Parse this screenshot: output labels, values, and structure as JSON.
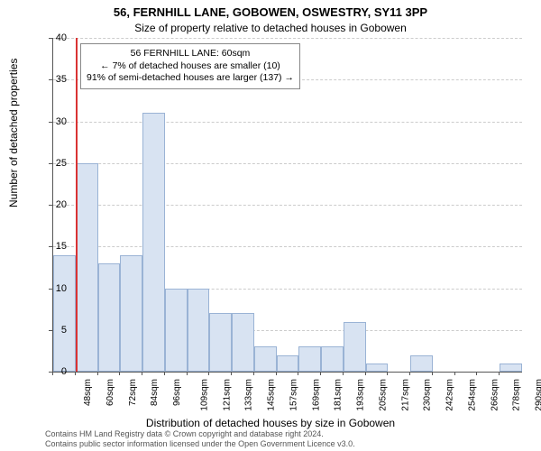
{
  "chart": {
    "type": "histogram",
    "title_main": "56, FERNHILL LANE, GOBOWEN, OSWESTRY, SY11 3PP",
    "title_sub": "Size of property relative to detached houses in Gobowen",
    "xlabel": "Distribution of detached houses by size in Gobowen",
    "ylabel": "Number of detached properties",
    "background_color": "#ffffff",
    "bar_fill": "#d8e3f2",
    "bar_border": "#9ab3d5",
    "grid_color": "#cccccc",
    "axis_color": "#555555",
    "refline_color": "#d93333",
    "refline_x": 60,
    "ylim": [
      0,
      40
    ],
    "ytick_step": 5,
    "xticks": [
      48,
      60,
      72,
      84,
      96,
      109,
      121,
      133,
      145,
      157,
      169,
      181,
      193,
      205,
      217,
      230,
      242,
      254,
      266,
      278,
      290
    ],
    "xtick_suffix": "sqm",
    "bars": [
      {
        "x": 48,
        "h": 14
      },
      {
        "x": 60,
        "h": 25
      },
      {
        "x": 72,
        "h": 13
      },
      {
        "x": 84,
        "h": 14
      },
      {
        "x": 96,
        "h": 31
      },
      {
        "x": 109,
        "h": 10
      },
      {
        "x": 121,
        "h": 10
      },
      {
        "x": 133,
        "h": 7
      },
      {
        "x": 145,
        "h": 7
      },
      {
        "x": 157,
        "h": 3
      },
      {
        "x": 169,
        "h": 2
      },
      {
        "x": 181,
        "h": 3
      },
      {
        "x": 193,
        "h": 3
      },
      {
        "x": 205,
        "h": 6
      },
      {
        "x": 217,
        "h": 1
      },
      {
        "x": 230,
        "h": 0
      },
      {
        "x": 242,
        "h": 2
      },
      {
        "x": 254,
        "h": 0
      },
      {
        "x": 266,
        "h": 0
      },
      {
        "x": 278,
        "h": 0
      },
      {
        "x": 290,
        "h": 1
      }
    ],
    "annotation": {
      "line1": "56 FERNHILL LANE: 60sqm",
      "line2": "← 7% of detached houses are smaller (10)",
      "line3": "91% of semi-detached houses are larger (137) →"
    },
    "footnote_line1": "Contains HM Land Registry data © Crown copyright and database right 2024.",
    "footnote_line2": "Contains public sector information licensed under the Open Government Licence v3.0."
  }
}
